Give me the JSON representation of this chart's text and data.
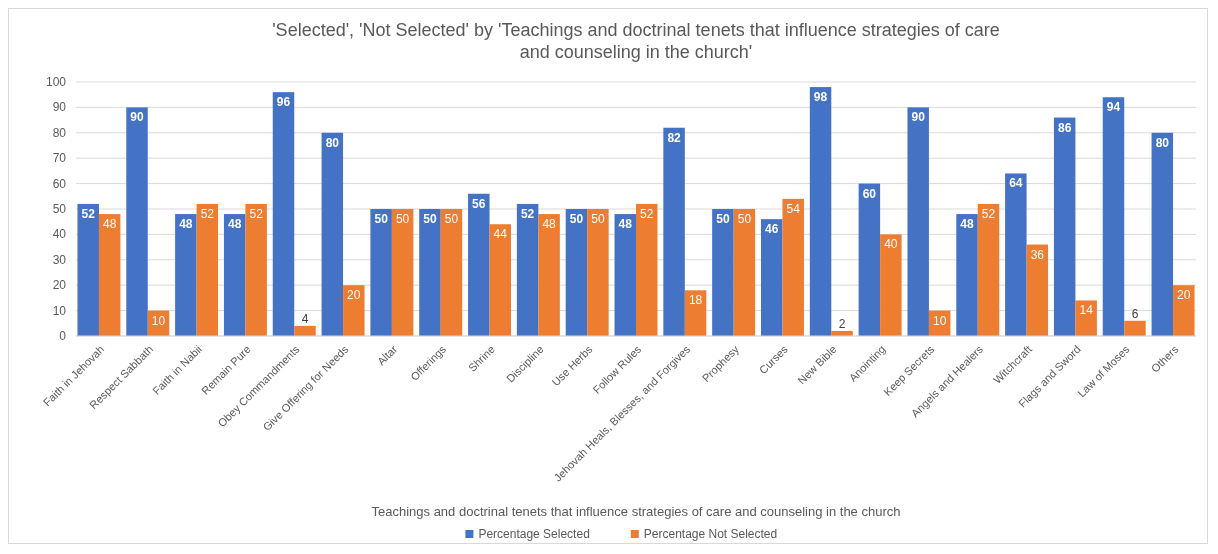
{
  "chart_data": {
    "type": "bar",
    "title": "'Selected', 'Not Selected' by 'Teachings and doctrinal tenets that influence strategies of care and counseling in the church'",
    "xlabel": "Teachings and doctrinal tenets that influence strategies of care and counseling in the church",
    "categories": [
      "Faith in Jehovah",
      "Respect Sabbath",
      "Faith in Nabii",
      "Remain Pure",
      "Obey Commandments",
      "Give Offering for Needs",
      "Altar",
      "Offerings",
      "Shrine",
      "Discipline",
      "Use Herbs",
      "Follow Rules",
      "Jehovah Heals, Blesses, and Forgives",
      "Prophesy",
      "Curses",
      "New Bible",
      "Anointing",
      "Keep Secrets",
      "Angels and Healers",
      "Witchcraft",
      "Flags and Sword",
      "Law of Moses",
      "Others"
    ],
    "series": [
      {
        "name": "Percentage Selected",
        "color": "#4472c4",
        "values": [
          52,
          90,
          48,
          48,
          96,
          80,
          50,
          50,
          56,
          52,
          50,
          48,
          82,
          50,
          46,
          98,
          60,
          90,
          48,
          64,
          86,
          94,
          80
        ]
      },
      {
        "name": "Percentage Not Selected",
        "color": "#ed7d31",
        "values": [
          48,
          10,
          52,
          52,
          4,
          20,
          50,
          50,
          44,
          48,
          50,
          52,
          18,
          50,
          54,
          2,
          40,
          10,
          52,
          36,
          14,
          6,
          20
        ]
      }
    ],
    "ylim": [
      0,
      100
    ],
    "yticks": [
      0,
      10,
      20,
      30,
      40,
      50,
      60,
      70,
      80,
      90,
      100
    ],
    "grid": "y",
    "legend": "bottom",
    "data_labels": true
  }
}
